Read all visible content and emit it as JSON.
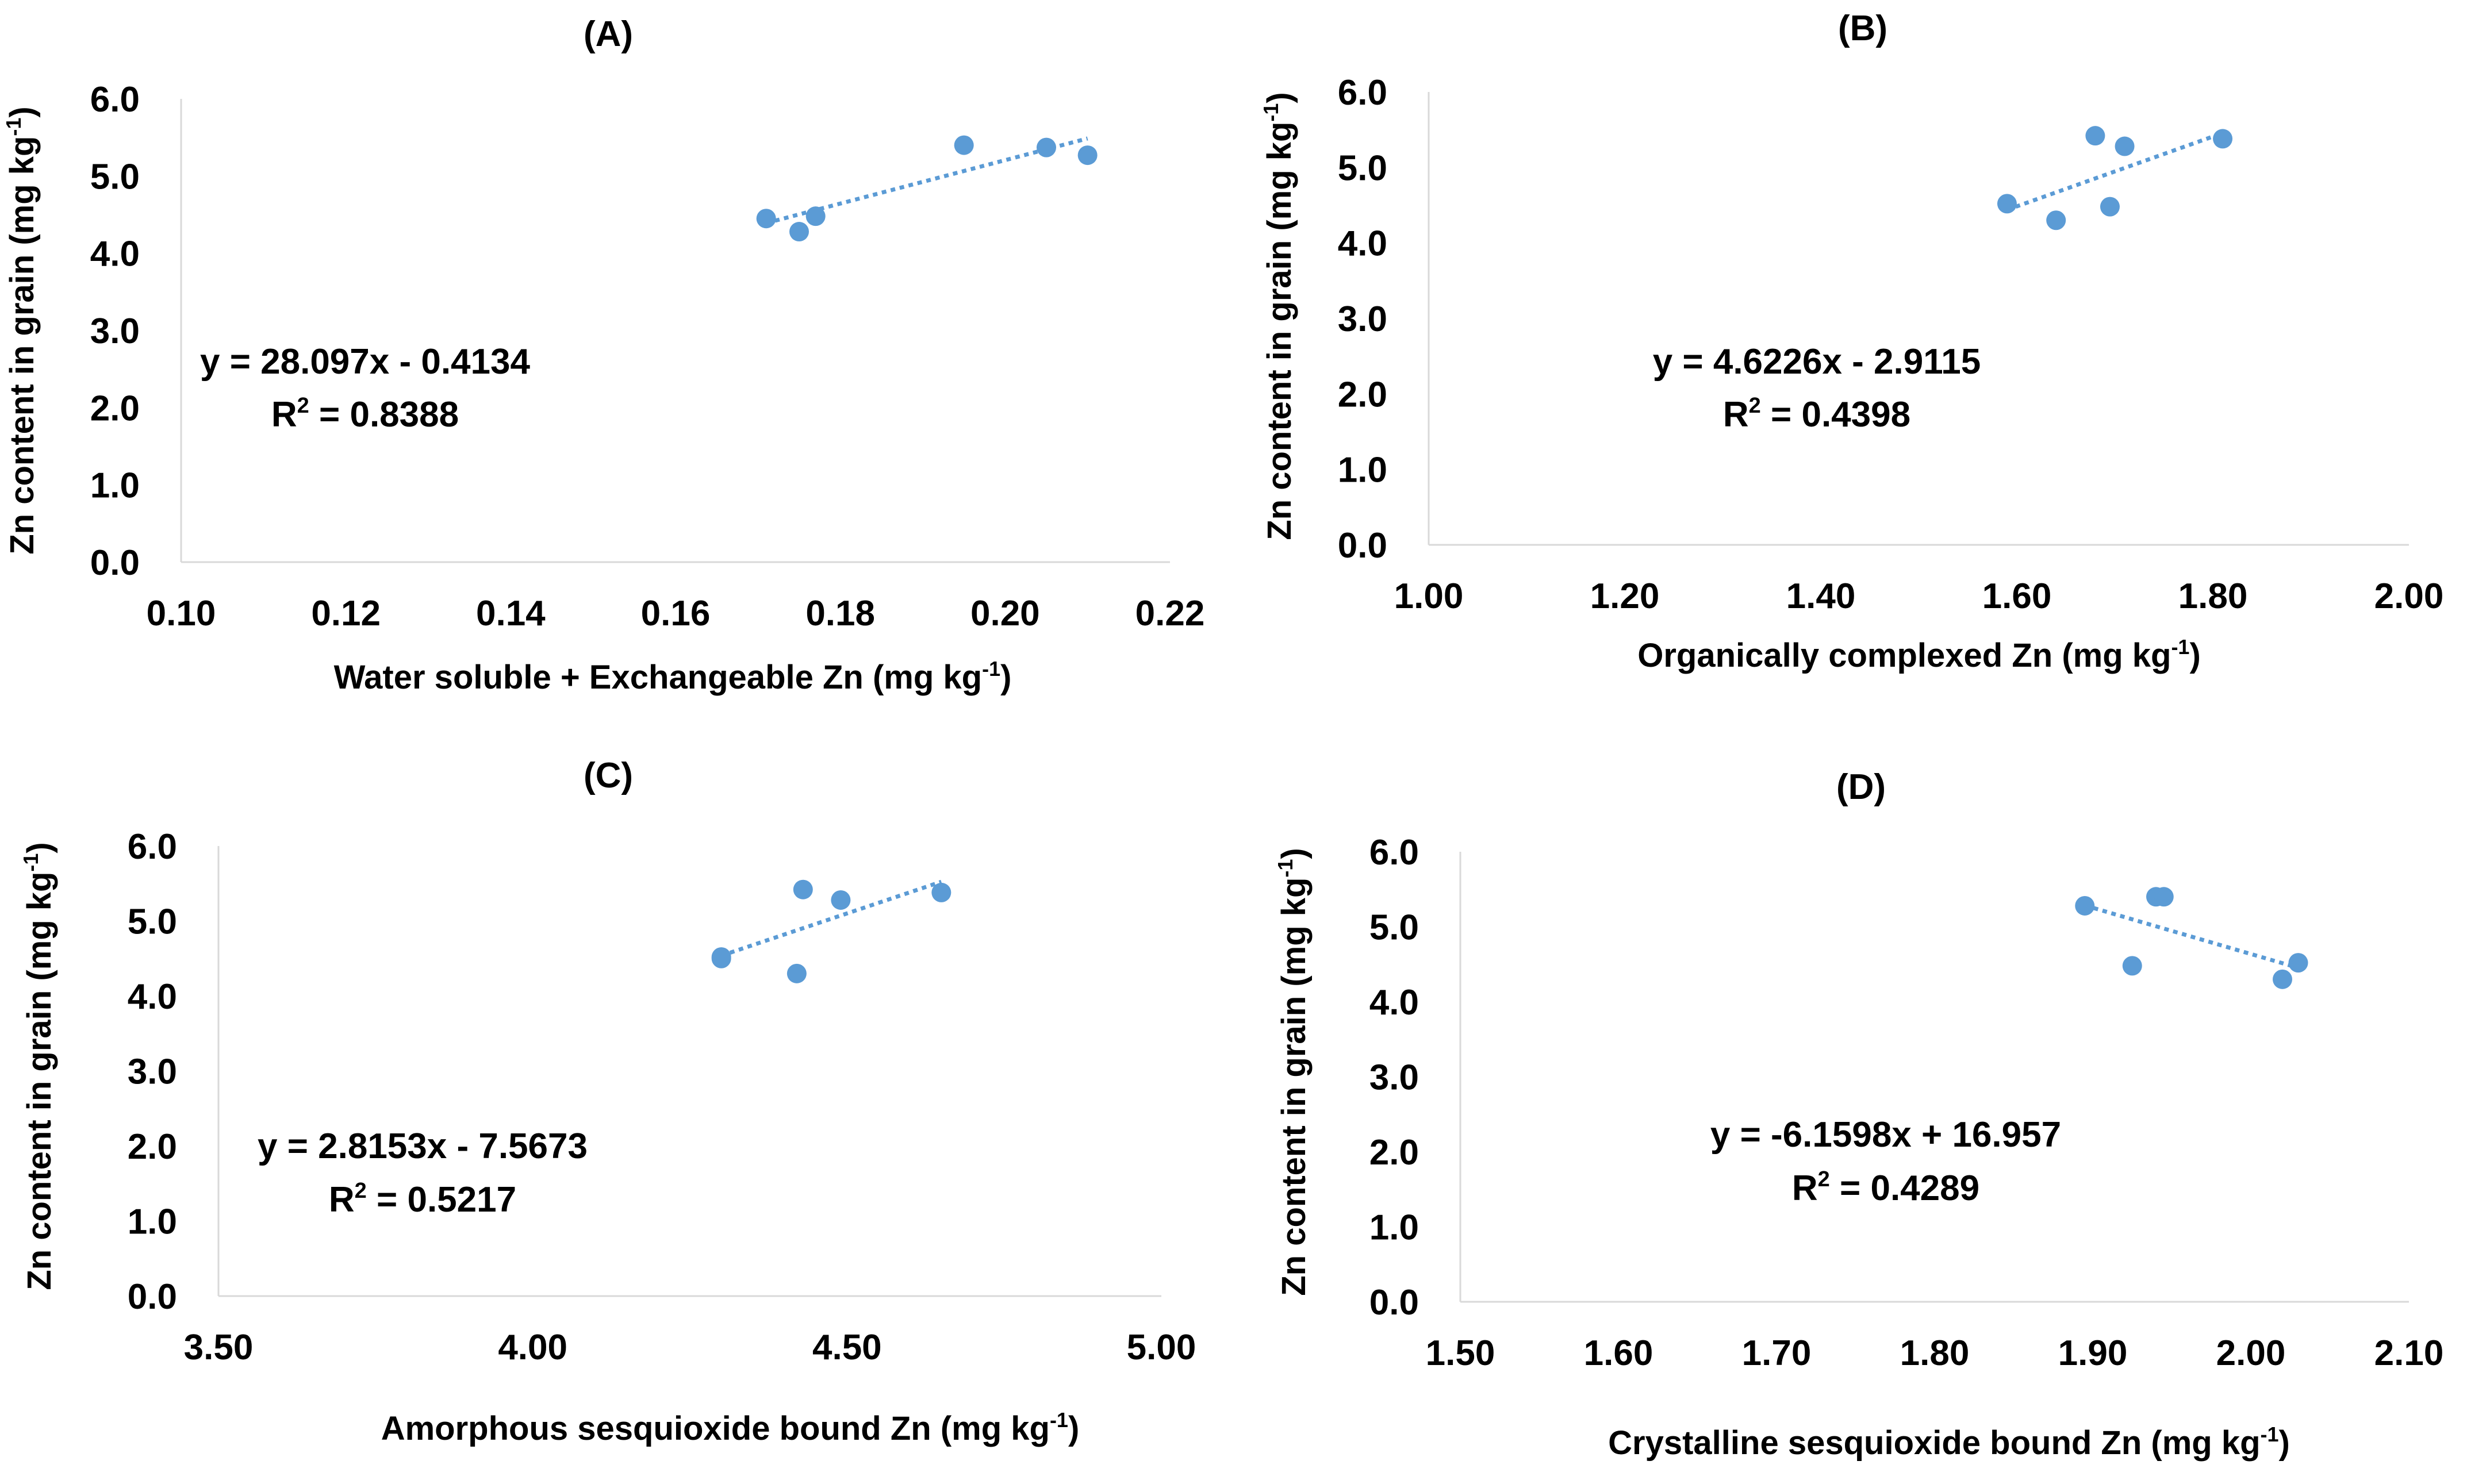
{
  "figure": {
    "ylabel_main": "Zn content in grain (mg kg",
    "unit_sup": "-1",
    "unit_close": ")",
    "r2_prefix": "R",
    "r2_sup": "2",
    "r2_suffix": " = "
  },
  "chart_data": [
    {
      "type": "scatter",
      "title": "(A)",
      "xlabel": "Water soluble + Exchangeable Zn (mg kg",
      "ylabel": "Zn content in grain (mg kg-1)",
      "xlim": [
        0.1,
        0.22
      ],
      "ylim": [
        0.0,
        6.0
      ],
      "xticks": [
        "0.10",
        "0.12",
        "0.14",
        "0.16",
        "0.18",
        "0.20",
        "0.22"
      ],
      "yticks": [
        "0.0",
        "1.0",
        "2.0",
        "3.0",
        "4.0",
        "5.0",
        "6.0"
      ],
      "points": [
        [
          0.171,
          4.45
        ],
        [
          0.175,
          4.28
        ],
        [
          0.177,
          4.48
        ],
        [
          0.195,
          5.4
        ],
        [
          0.205,
          5.37
        ],
        [
          0.21,
          5.27
        ]
      ],
      "trendline": {
        "slope": 28.097,
        "intercept": -0.4134,
        "x_range": [
          0.171,
          0.21
        ]
      },
      "equation": "y = 28.097x - 0.4134",
      "r2": "0.8388"
    },
    {
      "type": "scatter",
      "title": "(B)",
      "xlabel": "Organically complexed Zn (mg kg",
      "ylabel": "Zn content in grain (mg kg-1)",
      "xlim": [
        1.0,
        2.0
      ],
      "ylim": [
        0.0,
        6.0
      ],
      "xticks": [
        "1.00",
        "1.20",
        "1.40",
        "1.60",
        "1.80",
        "2.00"
      ],
      "yticks": [
        "0.0",
        "1.0",
        "2.0",
        "3.0",
        "4.0",
        "5.0",
        "6.0"
      ],
      "points": [
        [
          1.59,
          4.52
        ],
        [
          1.64,
          4.3
        ],
        [
          1.68,
          5.42
        ],
        [
          1.695,
          4.48
        ],
        [
          1.71,
          5.28
        ],
        [
          1.81,
          5.38
        ]
      ],
      "trendline": {
        "slope": 4.6226,
        "intercept": -2.9115,
        "x_range": [
          1.59,
          1.81
        ]
      },
      "equation": "y = 4.6226x - 2.9115",
      "r2": "0.4398"
    },
    {
      "type": "scatter",
      "title": "(C)",
      "xlabel": "Amorphous sesquioxide bound Zn (mg kg",
      "ylabel": "Zn content in grain (mg kg-1)",
      "xlim": [
        3.5,
        5.0
      ],
      "ylim": [
        0.0,
        6.0
      ],
      "xticks": [
        "3.50",
        "4.00",
        "4.50",
        "5.00"
      ],
      "yticks": [
        "0.0",
        "1.0",
        "2.0",
        "3.0",
        "4.0",
        "5.0",
        "6.0"
      ],
      "points": [
        [
          4.3,
          4.5
        ],
        [
          4.3,
          4.52
        ],
        [
          4.42,
          4.3
        ],
        [
          4.43,
          5.42
        ],
        [
          4.49,
          5.28
        ],
        [
          4.65,
          5.38
        ]
      ],
      "trendline": {
        "slope": 2.8153,
        "intercept": -7.5673,
        "x_range": [
          4.3,
          4.65
        ]
      },
      "equation": "y = 2.8153x - 7.5673",
      "r2": "0.5217"
    },
    {
      "type": "scatter",
      "title": "(D)",
      "xlabel": "Crystalline sesquioxide bound Zn (mg kg",
      "ylabel": "Zn content in grain (mg kg-1)",
      "xlim": [
        1.5,
        2.1
      ],
      "ylim": [
        0.0,
        6.0
      ],
      "xticks": [
        "1.50",
        "1.60",
        "1.70",
        "1.80",
        "1.90",
        "2.00",
        "2.10"
      ],
      "yticks": [
        "0.0",
        "1.0",
        "2.0",
        "3.0",
        "4.0",
        "5.0",
        "6.0"
      ],
      "points": [
        [
          1.895,
          5.28
        ],
        [
          1.925,
          4.48
        ],
        [
          1.94,
          5.4
        ],
        [
          1.945,
          5.4
        ],
        [
          2.02,
          4.3
        ],
        [
          2.03,
          4.52
        ]
      ],
      "trendline": {
        "slope": -6.1598,
        "intercept": 16.957,
        "x_range": [
          1.895,
          2.03
        ]
      },
      "equation": "y = -6.1598x + 16.957",
      "r2": "0.4289"
    }
  ]
}
